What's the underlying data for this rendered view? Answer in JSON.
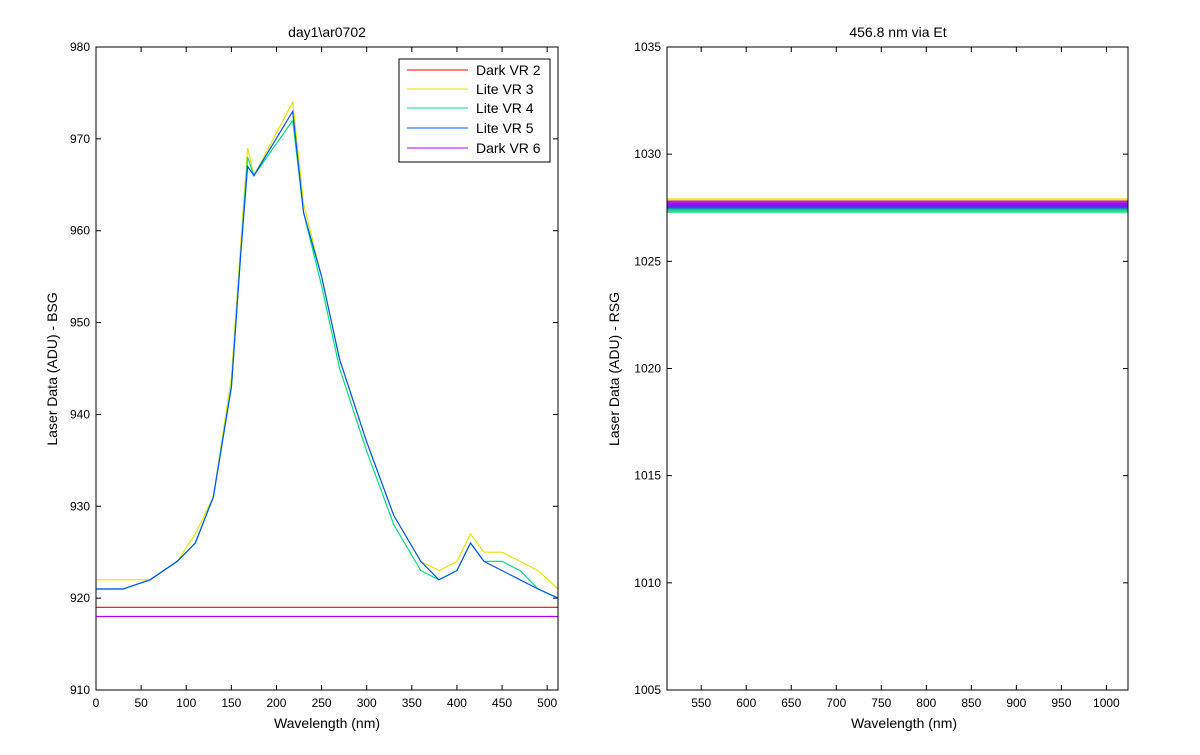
{
  "chart_data": [
    {
      "type": "line",
      "title": "day1\\ar0702",
      "xlabel": "Wavelength (nm)",
      "ylabel": "Laser Data (ADU) - BSG",
      "xlim": [
        0,
        512
      ],
      "ylim": [
        910,
        980
      ],
      "xticks": [
        0,
        50,
        100,
        150,
        200,
        250,
        300,
        350,
        400,
        450,
        500
      ],
      "yticks": [
        910,
        920,
        930,
        940,
        950,
        960,
        970,
        980
      ],
      "legend_position": "top-right",
      "series": [
        {
          "name": "Dark VR 2",
          "color": "#ff0000",
          "x": [
            0,
            30,
            60,
            90,
            120,
            150,
            180,
            210,
            240,
            270,
            300,
            330,
            360,
            390,
            420,
            450,
            480,
            512
          ],
          "values": [
            919,
            919,
            919,
            919,
            919,
            919,
            919,
            919,
            919,
            919,
            919,
            919,
            919,
            919,
            919,
            919,
            919,
            919
          ]
        },
        {
          "name": "Lite VR 3",
          "color": "#e6e600",
          "x": [
            0,
            30,
            60,
            90,
            110,
            130,
            150,
            160,
            168,
            175,
            218,
            230,
            250,
            270,
            300,
            330,
            360,
            380,
            400,
            415,
            430,
            450,
            470,
            490,
            512
          ],
          "values": [
            922,
            922,
            922,
            924,
            927,
            931,
            944,
            958,
            969,
            966,
            974,
            963,
            955,
            946,
            937,
            929,
            924,
            923,
            924,
            927,
            925,
            925,
            924,
            923,
            921
          ]
        },
        {
          "name": "Lite VR 4",
          "color": "#00e080",
          "x": [
            0,
            30,
            60,
            90,
            110,
            130,
            150,
            160,
            168,
            175,
            218,
            230,
            250,
            270,
            300,
            330,
            360,
            380,
            400,
            415,
            430,
            450,
            470,
            490,
            512
          ],
          "values": [
            921,
            921,
            922,
            924,
            926,
            931,
            943,
            957,
            968,
            966,
            972,
            962,
            954,
            945,
            936,
            928,
            923,
            922,
            923,
            926,
            924,
            924,
            923,
            921,
            920
          ]
        },
        {
          "name": "Lite VR 5",
          "color": "#0050ff",
          "x": [
            0,
            30,
            60,
            90,
            110,
            130,
            150,
            160,
            168,
            175,
            218,
            230,
            250,
            270,
            300,
            330,
            360,
            380,
            400,
            415,
            430,
            450,
            470,
            490,
            512
          ],
          "values": [
            921,
            921,
            922,
            924,
            926,
            931,
            943,
            957,
            967,
            966,
            973,
            962,
            955,
            946,
            937,
            929,
            924,
            922,
            923,
            926,
            924,
            923,
            922,
            921,
            920
          ]
        },
        {
          "name": "Dark VR 6",
          "color": "#b000ff",
          "x": [
            0,
            30,
            60,
            90,
            120,
            150,
            180,
            210,
            240,
            270,
            300,
            330,
            360,
            390,
            420,
            450,
            480,
            512
          ],
          "values": [
            918,
            918,
            918,
            918,
            918,
            918,
            918,
            918,
            918,
            918,
            918,
            918,
            918,
            918,
            918,
            918,
            918,
            918
          ]
        }
      ]
    },
    {
      "type": "line",
      "title": "456.8 nm via Et",
      "xlabel": "Wavelength (nm)",
      "ylabel": "Laser Data (ADU) - RSG",
      "xlim": [
        512,
        1024
      ],
      "ylim": [
        1005,
        1035
      ],
      "xticks": [
        550,
        600,
        650,
        700,
        750,
        800,
        850,
        900,
        950,
        1000
      ],
      "yticks": [
        1005,
        1010,
        1015,
        1020,
        1025,
        1030,
        1035
      ],
      "series": [
        {
          "color": "#ff0000",
          "x": [
            512,
            1024
          ],
          "values": [
            1027.5,
            1027.5
          ]
        },
        {
          "color": "#e6e600",
          "x": [
            512,
            1024
          ],
          "values": [
            1027.8,
            1027.8
          ]
        },
        {
          "color": "#00e080",
          "x": [
            512,
            1024
          ],
          "values": [
            1027.4,
            1027.4
          ]
        },
        {
          "color": "#0050ff",
          "x": [
            512,
            1024
          ],
          "values": [
            1027.6,
            1027.6
          ]
        },
        {
          "color": "#b000ff",
          "x": [
            512,
            1024
          ],
          "values": [
            1027.7,
            1027.7
          ]
        }
      ]
    }
  ]
}
